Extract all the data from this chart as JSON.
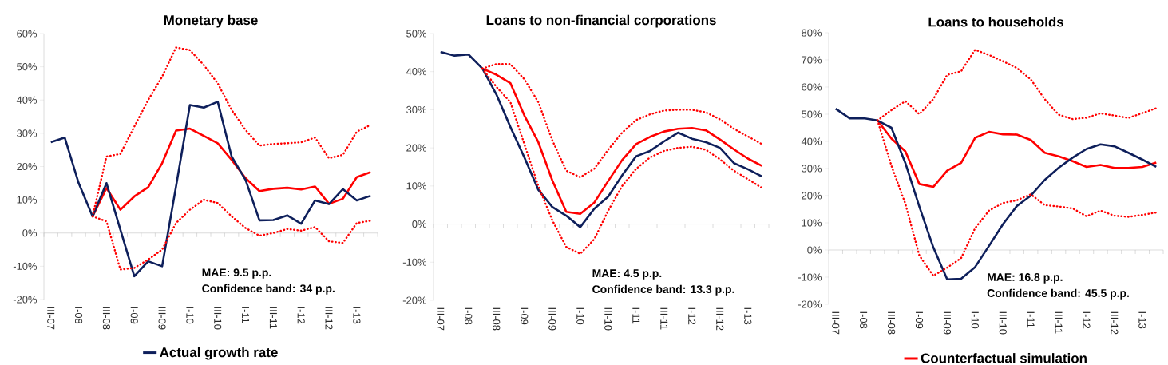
{
  "chart_data": [
    {
      "type": "line",
      "title": "Monetary base",
      "categories": [
        "III-07",
        null,
        "I-08",
        null,
        "III-08",
        null,
        "I-09",
        null,
        "III-09",
        null,
        "I-10",
        null,
        "III-10",
        null,
        "I-11",
        null,
        "III-11",
        null,
        "I-12",
        null,
        "III-12",
        null,
        "I-13",
        null
      ],
      "series": [
        {
          "color": "#ff0000",
          "line_style": "dotted",
          "values": [
            null,
            null,
            null,
            5,
            23,
            23.8,
            32,
            40,
            47,
            55.8,
            55,
            50.5,
            45,
            37,
            31,
            26.3,
            26.8,
            27,
            27.3,
            28.7,
            22.5,
            23.5,
            30.5,
            32.5
          ]
        },
        {
          "color": "#ff0000",
          "line_style": "dotted",
          "values": [
            null,
            null,
            null,
            5,
            3.5,
            -11,
            -10.5,
            -8,
            -5,
            3,
            7,
            10,
            9,
            5,
            1.5,
            -0.8,
            0,
            1.2,
            0.7,
            1.8,
            -2.5,
            -3,
            3,
            3.7
          ]
        },
        {
          "color": "#ff0000",
          "line_style": "solid",
          "values": [
            null,
            null,
            null,
            5,
            13.5,
            7,
            11,
            13.8,
            21,
            30.8,
            31.4,
            29.2,
            27,
            22,
            16.5,
            12.6,
            13.3,
            13.6,
            13.1,
            14,
            8.8,
            10.3,
            16.8,
            18.3
          ]
        },
        {
          "name": "Actual growth rate",
          "color": "#0e1f5b",
          "line_style": "solid",
          "values": [
            27.3,
            28.7,
            15,
            5,
            15,
            1,
            -13,
            -8.5,
            -10,
            14,
            38.5,
            37.7,
            39.5,
            23,
            16,
            3.8,
            3.9,
            5.3,
            2.8,
            9.8,
            8.7,
            13.2,
            9.8,
            11.2
          ]
        }
      ],
      "ylim": [
        -20,
        60
      ],
      "yticks": [
        {
          "value": -20,
          "label": "-20%"
        },
        {
          "value": -10,
          "label": "-10%"
        },
        {
          "value": 0,
          "label": "0%"
        },
        {
          "value": 10,
          "label": "10%"
        },
        {
          "value": 20,
          "label": "20%"
        },
        {
          "value": 30,
          "label": "30%"
        },
        {
          "value": 40,
          "label": "40%"
        },
        {
          "value": 50,
          "label": "50%"
        },
        {
          "value": 60,
          "label": "60%"
        }
      ],
      "annotations": [
        "MAE: 9.5 p.p.",
        "Confidence band: 34 p.p."
      ],
      "legend": "bottom"
    },
    {
      "type": "line",
      "title": "Loans to non-financial corporations",
      "categories": [
        "III-07",
        null,
        "I-08",
        null,
        "III-08",
        null,
        "I-09",
        null,
        "III-09",
        null,
        "I-10",
        null,
        "III-10",
        null,
        "I-11",
        null,
        "III-11",
        null,
        "I-12",
        null,
        "III-12",
        null,
        "I-13",
        null
      ],
      "series": [
        {
          "color": "#ff0000",
          "line_style": "dotted",
          "values": [
            null,
            null,
            null,
            40.8,
            42,
            42,
            38,
            32,
            22,
            14,
            12.3,
            14.5,
            19.5,
            24,
            27.3,
            28.8,
            29.8,
            30,
            30,
            29.3,
            27.5,
            25,
            23,
            21
          ]
        },
        {
          "color": "#ff0000",
          "line_style": "dotted",
          "values": [
            null,
            null,
            null,
            40.8,
            36,
            32,
            21,
            10,
            1,
            -6,
            -7.8,
            -4,
            3.5,
            10,
            14.5,
            17.5,
            19.2,
            20,
            20.3,
            19.5,
            17,
            14,
            11.8,
            9.5
          ]
        },
        {
          "color": "#ff0000",
          "line_style": "solid",
          "values": [
            null,
            null,
            null,
            40.8,
            39.2,
            37,
            28.5,
            21.5,
            11.5,
            3.2,
            2.7,
            5.6,
            11.3,
            16.8,
            21,
            22.9,
            24.3,
            25,
            25.2,
            24.6,
            22.2,
            19.6,
            17.2,
            15.3
          ]
        },
        {
          "color": "#0e1f5b",
          "line_style": "solid",
          "values": [
            45.2,
            44.2,
            44.5,
            40.8,
            34,
            25.5,
            17.5,
            9,
            4.5,
            2.2,
            -0.8,
            4,
            7.2,
            12.8,
            17.8,
            19.2,
            21.7,
            24,
            22.4,
            21.5,
            20,
            16,
            14.4,
            12.5
          ]
        }
      ],
      "ylim": [
        -20,
        50
      ],
      "yticks": [
        {
          "value": -20,
          "label": "-20%"
        },
        {
          "value": -10,
          "label": "-10%"
        },
        {
          "value": 0,
          "label": "0%"
        },
        {
          "value": 10,
          "label": "10%"
        },
        {
          "value": 20,
          "label": "20%"
        },
        {
          "value": 30,
          "label": "30%"
        },
        {
          "value": 40,
          "label": "40%"
        },
        {
          "value": 50,
          "label": "50%"
        }
      ],
      "annotations": [
        "MAE: 4.5 p.p.",
        "Confidence band: 13.3 p.p."
      ]
    },
    {
      "type": "line",
      "title": "Loans to households",
      "categories": [
        "III-07",
        null,
        "I-08",
        null,
        "III-08",
        null,
        "I-09",
        null,
        "III-09",
        null,
        "I-10",
        null,
        "III-10",
        null,
        "I-11",
        null,
        "III-11",
        null,
        "I-12",
        null,
        "III-12",
        null,
        "I-13",
        null
      ],
      "series": [
        {
          "color": "#ff0000",
          "line_style": "dotted",
          "values": [
            null,
            null,
            null,
            47.7,
            51.5,
            54.8,
            50,
            55.5,
            64.5,
            65.8,
            73.7,
            71.8,
            69.5,
            67,
            62.8,
            55.5,
            49.8,
            48.2,
            48.7,
            50.3,
            49.5,
            48.6,
            50.4,
            52.2
          ]
        },
        {
          "color": "#ff0000",
          "line_style": "dotted",
          "values": [
            null,
            null,
            null,
            47.7,
            31,
            17,
            -2,
            -9.5,
            -6.5,
            -3,
            8,
            14.5,
            17.3,
            18.3,
            20.5,
            16.5,
            16,
            15.3,
            12.4,
            14.5,
            12.6,
            12.2,
            12.9,
            13.8
          ]
        },
        {
          "name": "Counterfactual simulation",
          "color": "#ff0000",
          "line_style": "solid",
          "values": [
            null,
            null,
            null,
            47.7,
            41,
            36.3,
            24.3,
            23.2,
            29.2,
            32.1,
            41.3,
            43.5,
            42.6,
            42.5,
            40.5,
            35.8,
            34.5,
            32.7,
            30.6,
            31.3,
            30.2,
            30.2,
            30.6,
            32.2
          ]
        },
        {
          "color": "#0e1f5b",
          "line_style": "solid",
          "values": [
            52,
            48.5,
            48.5,
            47.7,
            45,
            32,
            16,
            1,
            -10.8,
            -10.6,
            -6.3,
            1.5,
            9.5,
            16.2,
            20,
            25.8,
            30.3,
            34,
            37.2,
            38.9,
            38.2,
            35.8,
            33.3,
            30.6
          ]
        }
      ],
      "ylim": [
        -20,
        80
      ],
      "yticks": [
        {
          "value": -20,
          "label": "-20%"
        },
        {
          "value": -10,
          "label": "-10%"
        },
        {
          "value": 0,
          "label": "0%"
        },
        {
          "value": 10,
          "label": "10%"
        },
        {
          "value": 20,
          "label": "20%"
        },
        {
          "value": 30,
          "label": "30%"
        },
        {
          "value": 40,
          "label": "40%"
        },
        {
          "value": 50,
          "label": "50%"
        },
        {
          "value": 60,
          "label": "60%"
        },
        {
          "value": 70,
          "label": "70%"
        },
        {
          "value": 80,
          "label": "80%"
        }
      ],
      "annotations": [
        "MAE: 16.8 p.p.",
        "Confidence band: 45.5 p.p."
      ],
      "legend": "bottom"
    }
  ]
}
